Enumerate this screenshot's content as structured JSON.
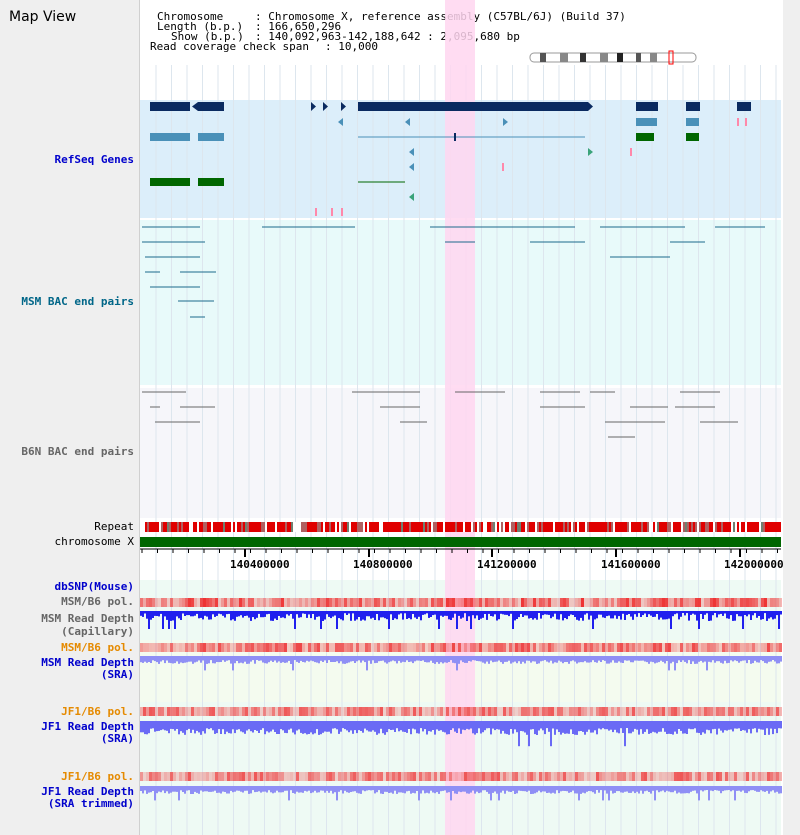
{
  "title": "Map View",
  "info": {
    "chromosome_key": "Chromosome",
    "chromosome_value": ": Chromosome X, reference assembly (C57BL/6J) (Build 37)",
    "length_key": "Length (b.p.)",
    "length_value": ": 166,650,296",
    "show_key": "Show (b.p.)",
    "show_value": ": 140,092,963-142,188,642 : 2,095,680 bp",
    "coverage_key": "Read coverage check span",
    "coverage_value": ": 10,000"
  },
  "tracks": {
    "refseq": "RefSeq Genes",
    "msm_bac": "MSM BAC end pairs",
    "b6n_bac": "B6N BAC end pairs",
    "repeat": "Repeat",
    "chromosome": "chromosome X",
    "dbsnp": "dbSNP(Mouse)",
    "msm_b6_pol": "MSM/B6 pol.",
    "msm_read_depth_cap_1": "MSM Read Depth",
    "msm_read_depth_cap_2": "(Capillary)",
    "msm_b6_pol_2": "MSM/B6 pol.",
    "msm_read_depth_sra_1": "MSM Read Depth",
    "msm_read_depth_sra_2": "(SRA)",
    "jf1_b6_pol": "JF1/B6 pol.",
    "jf1_read_depth_1": "JF1 Read Depth",
    "jf1_read_depth_2": "(SRA)",
    "jf1_b6_pol_2": "JF1/B6 pol.",
    "jf1_trim_1": "JF1 Read Depth",
    "jf1_trim_2": "(SRA trimmed)"
  },
  "ruler": {
    "ticks": [
      "140400000",
      "140800000",
      "141200000",
      "141600000",
      "142000000"
    ]
  },
  "colors": {
    "refseq_bg": "#dceefa",
    "msm_bg": "#e8fafa",
    "b6n_bg": "#f6f6fa",
    "gene_dark": "#0a2a60",
    "gene_mid": "#4a90b8",
    "gene_green": "#006600",
    "highlight": "#ffd6f0",
    "chromosome_bar": "#006600",
    "read_depth": "#2020ff"
  }
}
